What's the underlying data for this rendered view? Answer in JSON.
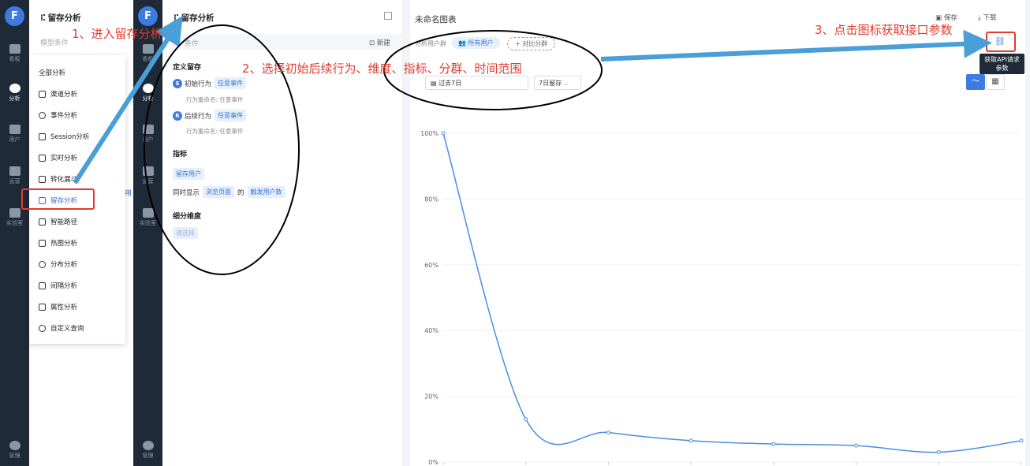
{
  "rail": {
    "logo": "F",
    "items": [
      "看板",
      "分析",
      "用户",
      "运营",
      "实验室"
    ],
    "settings": "管理"
  },
  "panel1": {
    "title": "留存分析",
    "model_conditions": "模型条件",
    "dropdown": {
      "header": "全部分析",
      "items": [
        "渠道分析",
        "事件分析",
        "Session分析",
        "实时分析",
        "转化漏斗",
        "留存分析",
        "智能路径",
        "热图分析",
        "分布分析",
        "间隔分析",
        "属性分析",
        "自定义查询"
      ],
      "partial_right": "发用"
    }
  },
  "panel2": {
    "title": "留存分析",
    "conditions": "条件",
    "new_button": "新建",
    "define_retention": "定义留存",
    "initial_behavior": {
      "badge": "S",
      "label": "初始行为",
      "tag": "任意事件",
      "rename_label": "行为重命名:",
      "rename_value": "任意事件"
    },
    "return_behavior": {
      "badge": "R",
      "label": "后续行为",
      "tag": "任意事件",
      "rename_label": "行为重命名:",
      "rename_value": "任意事件"
    },
    "metrics_title": "指标",
    "retained_users_tag": "留存用户",
    "also_show": {
      "prefix": "同时显示",
      "tag1": "浏览页面",
      "mid": "的",
      "tag2": "触发用户数"
    },
    "breakdown_title": "细分维度",
    "breakdown_placeholder": "请选择"
  },
  "chart_header": {
    "title": "未命名图表",
    "save": "保存",
    "download": "下载",
    "segment_label": "分析用户群",
    "all_users": "所有用户",
    "compare_segment": "+ 对比分群",
    "date_range": "过去7日",
    "retention_window": "7日留存",
    "tooltip": [
      "获取API请求",
      "参数"
    ]
  },
  "annotations": {
    "step1": "1、进入留存分析",
    "step2": "2、选择初始后续行为、维度、指标、分群、时间范围",
    "step3": "3、点击图标获取接口参数"
  },
  "colors": {
    "accent": "#3d7be3",
    "annotation": "#e33b2f",
    "rail": "#1f2a38",
    "arrow": "#4a9fd8"
  },
  "chart_data": {
    "type": "line",
    "ylabel_ticks": [
      "100%",
      "80%",
      "60%",
      "40%",
      "20%",
      "0%"
    ],
    "ylim": [
      0,
      100
    ],
    "x": [
      0,
      1,
      2,
      3,
      4,
      5,
      6,
      7
    ],
    "series": [
      {
        "values": [
          100,
          13,
          9,
          6.5,
          5.5,
          5,
          3,
          6.5
        ]
      }
    ],
    "grid": true
  }
}
